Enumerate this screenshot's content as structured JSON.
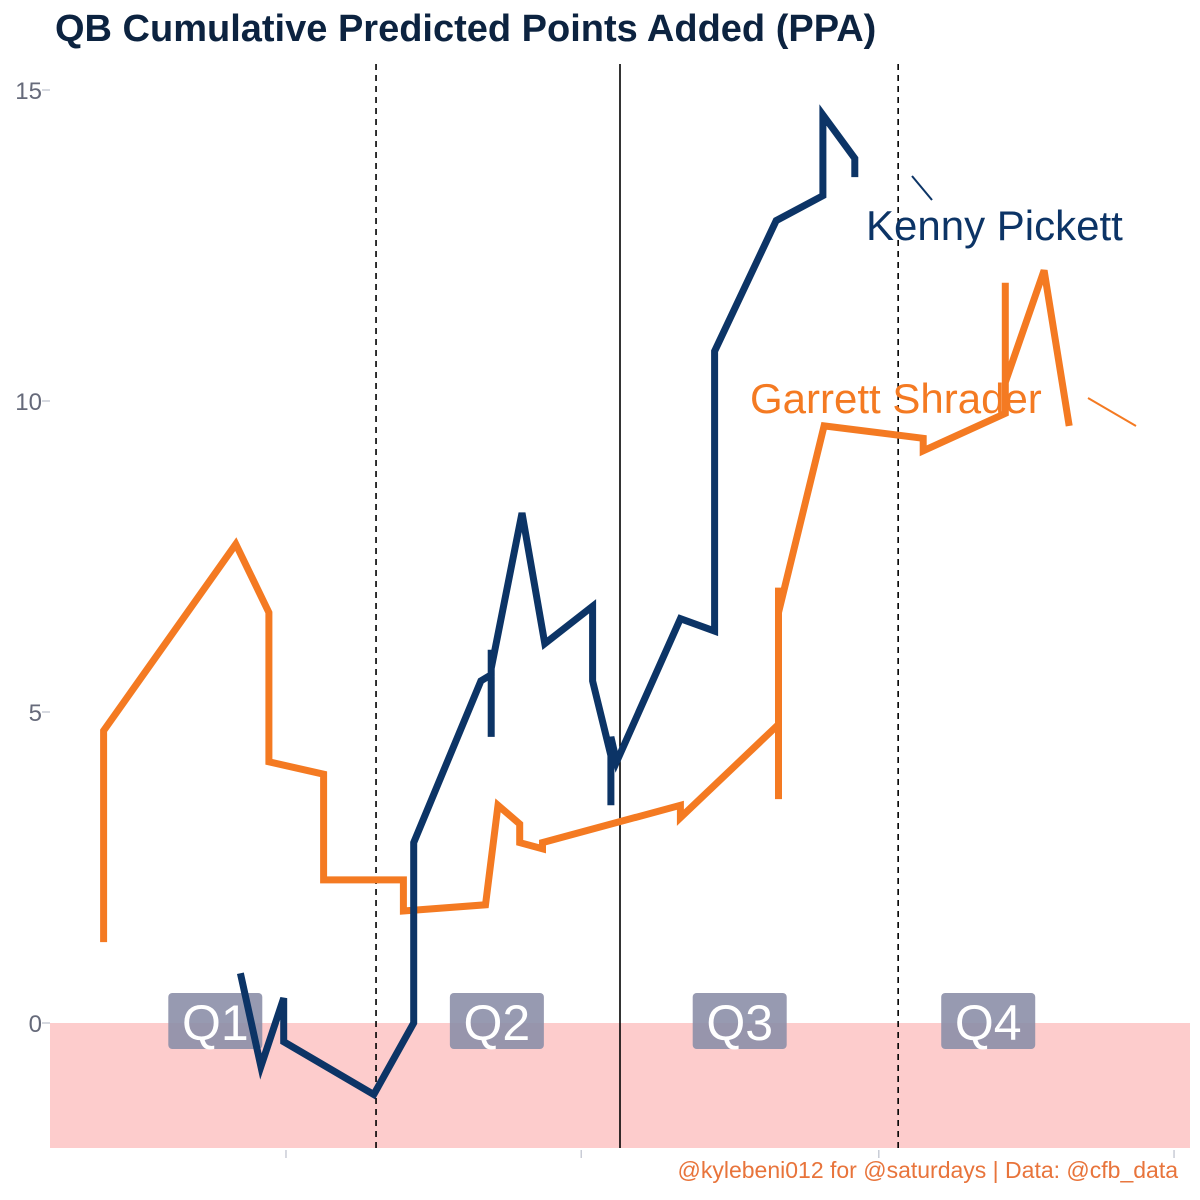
{
  "title": "QB Cumulative Predicted Points Added (PPA)",
  "caption": "@kylebeni012 for @saturdays | Data: @cfb_data",
  "colors": {
    "pickett": "#0c3466",
    "shrader": "#f47a22",
    "title": "#0c2340",
    "caption": "#e8743b",
    "negative_band": "#fdcccc",
    "quarter_box": "#8c8fa8",
    "axis_text": "#666a7a"
  },
  "chart_data": {
    "type": "line",
    "title": "QB Cumulative Predicted Points Added (PPA)",
    "xlabel": "",
    "ylabel": "",
    "ylim": [
      -2,
      15.5
    ],
    "y_ticks": [
      0,
      5,
      10,
      15
    ],
    "x_tick_labels_shown": false,
    "grid": false,
    "legend": "direct labels",
    "negative_region": {
      "from": -2,
      "to": 0
    },
    "quarter_dividers": [
      {
        "x": 0.286,
        "style": "dashed"
      },
      {
        "x": 0.5,
        "style": "solid"
      },
      {
        "x": 0.744,
        "style": "dashed"
      }
    ],
    "quarters": [
      {
        "label": "Q1",
        "x": 0.145
      },
      {
        "label": "Q2",
        "x": 0.392
      },
      {
        "label": "Q3",
        "x": 0.605
      },
      {
        "label": "Q4",
        "x": 0.823
      }
    ],
    "series": [
      {
        "name": "Kenny Pickett",
        "color": "#0c3466",
        "points": [
          [
            0.167,
            0.8
          ],
          [
            0.185,
            -0.7
          ],
          [
            0.205,
            0.4
          ],
          [
            0.205,
            -0.3
          ],
          [
            0.284,
            -1.15
          ],
          [
            0.319,
            0.0
          ],
          [
            0.319,
            2.9
          ],
          [
            0.378,
            5.5
          ],
          [
            0.387,
            5.6
          ],
          [
            0.387,
            6.0
          ],
          [
            0.387,
            4.6
          ],
          [
            0.387,
            5.7
          ],
          [
            0.414,
            8.2
          ],
          [
            0.434,
            6.1
          ],
          [
            0.476,
            6.7
          ],
          [
            0.476,
            5.5
          ],
          [
            0.492,
            4.3
          ],
          [
            0.492,
            3.5
          ],
          [
            0.492,
            4.6
          ],
          [
            0.497,
            4.2
          ],
          [
            0.553,
            6.5
          ],
          [
            0.583,
            6.3
          ],
          [
            0.583,
            10.8
          ],
          [
            0.637,
            12.9
          ],
          [
            0.678,
            13.3
          ],
          [
            0.678,
            14.6
          ],
          [
            0.706,
            13.9
          ],
          [
            0.706,
            13.6
          ]
        ]
      },
      {
        "name": "Garrett Shrader",
        "color": "#f47a22",
        "points": [
          [
            0.047,
            1.3
          ],
          [
            0.047,
            4.7
          ],
          [
            0.163,
            7.7
          ],
          [
            0.192,
            6.6
          ],
          [
            0.192,
            4.2
          ],
          [
            0.24,
            4.0
          ],
          [
            0.24,
            2.3
          ],
          [
            0.31,
            2.3
          ],
          [
            0.31,
            1.8
          ],
          [
            0.382,
            1.9
          ],
          [
            0.393,
            3.5
          ],
          [
            0.412,
            3.2
          ],
          [
            0.412,
            2.9
          ],
          [
            0.432,
            2.8
          ],
          [
            0.432,
            2.9
          ],
          [
            0.553,
            3.5
          ],
          [
            0.553,
            3.3
          ],
          [
            0.639,
            4.8
          ],
          [
            0.639,
            3.6
          ],
          [
            0.639,
            7.0
          ],
          [
            0.639,
            6.6
          ],
          [
            0.679,
            9.6
          ],
          [
            0.766,
            9.4
          ],
          [
            0.766,
            9.2
          ],
          [
            0.838,
            9.8
          ],
          [
            0.838,
            11.9
          ],
          [
            0.838,
            10.3
          ],
          [
            0.872,
            12.1
          ],
          [
            0.894,
            9.6
          ]
        ]
      }
    ],
    "annotations": [
      {
        "text": "Kenny Pickett",
        "series": "Kenny Pickett"
      },
      {
        "text": "Garrett Shrader",
        "series": "Garrett Shrader"
      }
    ]
  }
}
